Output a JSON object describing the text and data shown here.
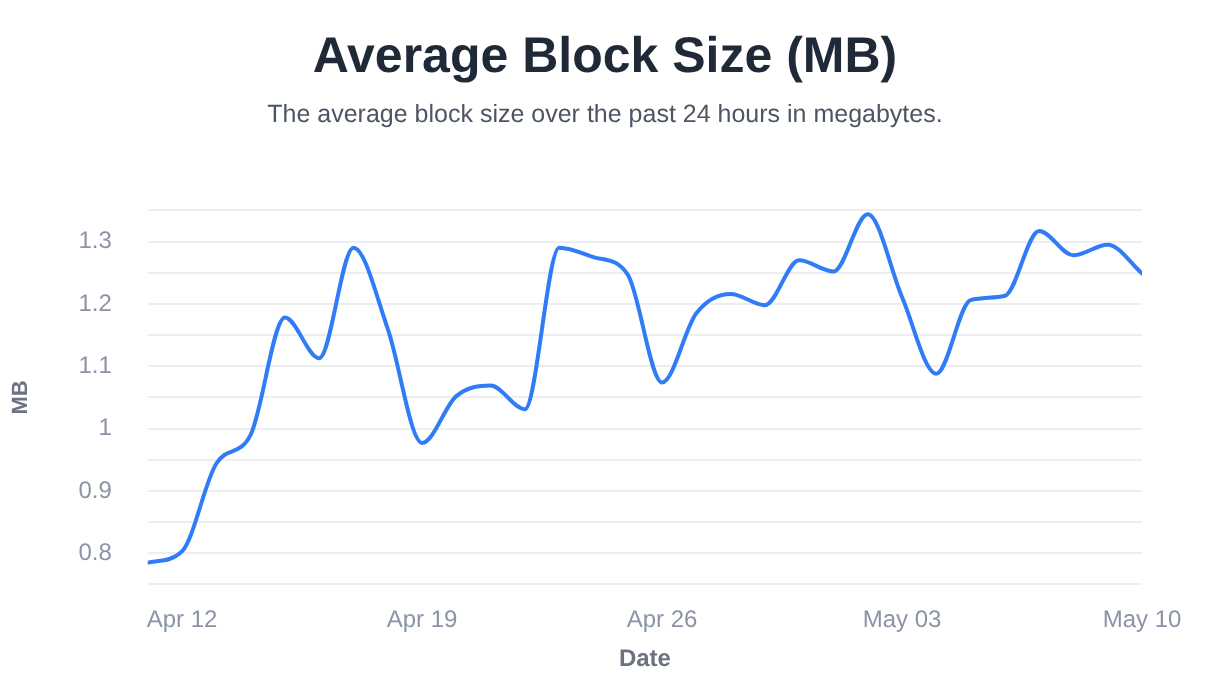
{
  "chart_data": {
    "type": "line",
    "title": "Average Block Size (MB)",
    "subtitle": "The average block size over the past 24 hours in megabytes.",
    "xlabel": "Date",
    "ylabel": "MB",
    "x": [
      "--04-11",
      "--04-12",
      "--04-13",
      "--04-14",
      "--04-15",
      "--04-16",
      "--04-17",
      "--04-18",
      "--04-19",
      "--04-20",
      "--04-21",
      "--04-22",
      "--04-23",
      "--04-24",
      "--04-25",
      "--04-26",
      "--04-27",
      "--04-28",
      "--04-29",
      "--04-30",
      "--05-01",
      "--05-02",
      "--05-03",
      "--05-04",
      "--05-05",
      "--05-06",
      "--05-07",
      "--05-08",
      "--05-09",
      "--05-10"
    ],
    "series": [
      {
        "color": "#2f7cf6",
        "values": [
          0.785,
          0.803,
          0.944,
          0.99,
          1.178,
          1.113,
          1.29,
          1.16,
          0.977,
          1.052,
          1.069,
          1.031,
          1.29,
          1.275,
          1.247,
          1.074,
          1.185,
          1.216,
          1.198,
          1.27,
          1.252,
          1.344,
          1.211,
          1.088,
          1.206,
          1.213,
          1.317,
          1.278,
          1.295,
          1.249
        ]
      }
    ],
    "xlim": [
      "--04-11",
      "--05-10"
    ],
    "xticks": [
      {
        "value": "--04-12",
        "label": "Apr 12"
      },
      {
        "value": "--04-19",
        "label": "Apr 19"
      },
      {
        "value": "--04-26",
        "label": "Apr 26"
      },
      {
        "value": "--05-03",
        "label": "May 03"
      },
      {
        "value": "--05-10",
        "label": "May 10"
      }
    ],
    "ylim": [
      0.75,
      1.35
    ],
    "yticks": [
      {
        "value": 0.75,
        "label": null
      },
      0.8,
      {
        "value": 0.85,
        "label": null
      },
      0.9,
      {
        "value": 0.95,
        "label": null
      },
      1,
      {
        "value": 1.05,
        "label": null
      },
      1.1,
      {
        "value": 1.15,
        "label": null
      },
      1.2,
      {
        "value": 1.25,
        "label": null
      },
      1.3,
      {
        "value": 1.35,
        "label": null
      }
    ],
    "grid": "y",
    "legend": false,
    "marker": "none",
    "line_style": "solid"
  }
}
